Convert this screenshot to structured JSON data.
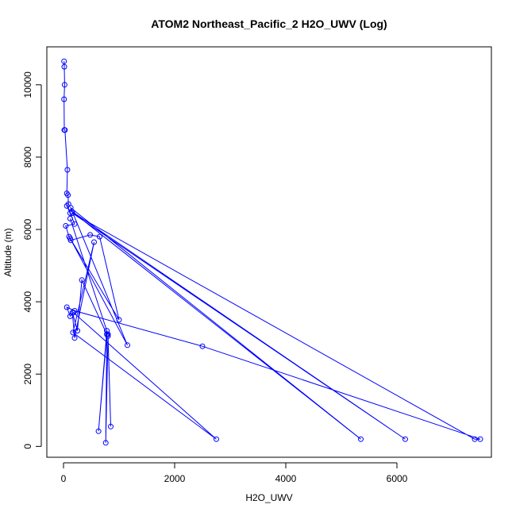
{
  "chart_data": {
    "type": "line",
    "title": "ATOM2 Northeast_Pacific_2 H2O_UWV (Log)",
    "xlabel": "H2O_UWV",
    "ylabel": "Altitude (m)",
    "xlim": [
      -300,
      7700
    ],
    "ylim": [
      -300,
      11050
    ],
    "xticks": [
      0,
      2000,
      4000,
      6000
    ],
    "yticks": [
      0,
      2000,
      4000,
      6000,
      8000,
      10000
    ],
    "grid": false,
    "legend": "none",
    "color": "#0000ff",
    "series": [
      {
        "points": [
          [
            10,
            10650
          ],
          [
            15,
            10500
          ],
          [
            20,
            10000
          ],
          [
            10,
            9600
          ],
          [
            15,
            8750
          ],
          [
            25,
            8750
          ],
          [
            70,
            7650
          ],
          [
            60,
            7000
          ],
          [
            80,
            6950
          ],
          [
            90,
            6700
          ],
          [
            60,
            6650
          ],
          [
            120,
            6450
          ],
          [
            200,
            6150
          ],
          [
            40,
            6100
          ],
          [
            100,
            5800
          ],
          [
            130,
            5700
          ],
          [
            480,
            5850
          ],
          [
            650,
            5800
          ],
          [
            1000,
            3500
          ],
          [
            120,
            5750
          ],
          [
            1150,
            2800
          ],
          [
            130,
            6600
          ],
          [
            5350,
            200
          ],
          [
            150,
            6500
          ],
          [
            6150,
            200
          ],
          [
            160,
            6450
          ],
          [
            7400,
            200
          ],
          [
            7500,
            200
          ],
          [
            2500,
            2770
          ],
          [
            200,
            3750
          ],
          [
            60,
            3850
          ],
          [
            120,
            3600
          ],
          [
            180,
            3700
          ],
          [
            2750,
            200
          ],
          [
            170,
            3150
          ],
          [
            550,
            5650
          ],
          [
            200,
            3000
          ],
          [
            160,
            3700
          ],
          [
            250,
            3200
          ],
          [
            330,
            4600
          ],
          [
            780,
            3100
          ],
          [
            630,
            420
          ],
          [
            780,
            3200
          ],
          [
            760,
            100
          ],
          [
            800,
            3050
          ],
          [
            850,
            550
          ],
          [
            800,
            3100
          ],
          [
            120,
            6300
          ]
        ]
      }
    ]
  }
}
